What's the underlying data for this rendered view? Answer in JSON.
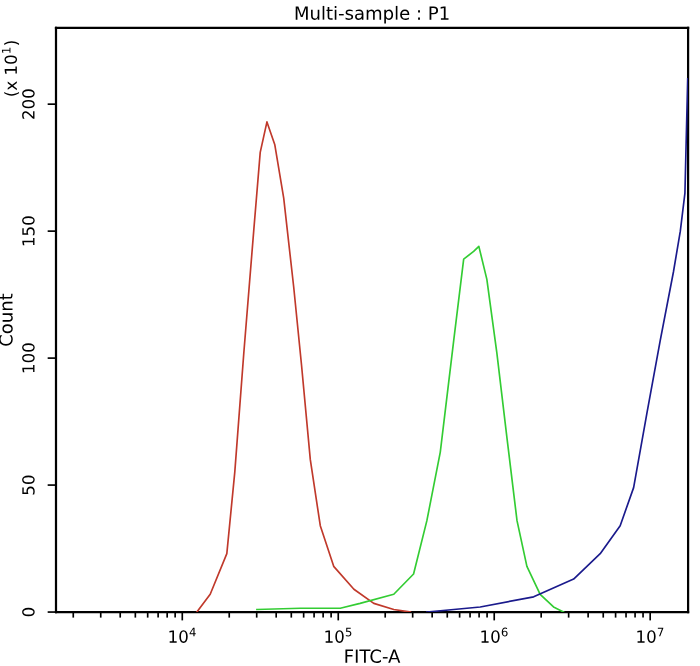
{
  "chart_data": {
    "type": "line",
    "title": "Multi-sample : P1",
    "xlabel": "FITC-A",
    "ylabel": "Count",
    "annotations": [
      "(x 10$^{1}$)"
    ],
    "log": "x",
    "xlim": [
      1550,
      17500000
    ],
    "ylim": [
      0,
      230
    ],
    "xticks": [
      {
        "value": 10000,
        "label": "10$^{4}$"
      },
      {
        "value": 100000,
        "label": "10$^{5}$"
      },
      {
        "value": 1000000,
        "label": "10$^{6}$"
      },
      {
        "value": 10000000,
        "label": "10$^{7}$"
      }
    ],
    "yticks": [
      0,
      50,
      100,
      150,
      200
    ],
    "grid": false,
    "legend": false,
    "marker": "none",
    "line_style": "solid",
    "series": [
      {
        "color": "#c0392b",
        "x": [
          12400,
          15100,
          19300,
          21700,
          24800,
          28700,
          31600,
          34900,
          39200,
          44700,
          51800,
          58200,
          66200,
          76700,
          93500,
          126000,
          169000,
          227000,
          290000
        ],
        "values": [
          0,
          7,
          23,
          55,
          102,
          150,
          181,
          193,
          184,
          163,
          128,
          97,
          60,
          34,
          18,
          9,
          3.4,
          1,
          0
        ]
      },
      {
        "color": "#33cc33",
        "x": [
          30100,
          57100,
          103000,
          138000,
          227000,
          304000,
          370000,
          451000,
          550000,
          637000,
          738000,
          797000,
          897000,
          1040000,
          1210000,
          1400000,
          1620000,
          1970000,
          2400000,
          2790000
        ],
        "values": [
          1,
          1.5,
          1.5,
          3.4,
          7,
          15,
          36,
          63,
          107,
          139,
          142,
          144,
          131,
          102,
          68,
          36,
          18,
          7,
          2,
          0
        ]
      },
      {
        "color": "#1a1a8c",
        "x": [
          370000,
          550000,
          813000,
          1790000,
          3230000,
          4780000,
          6420000,
          7830000,
          9510000,
          11600000,
          14100000,
          15600000,
          16700000,
          17400000
        ],
        "values": [
          0,
          1,
          2,
          6,
          13,
          23,
          34,
          49,
          78,
          107,
          134,
          150,
          165,
          210
        ]
      }
    ]
  }
}
